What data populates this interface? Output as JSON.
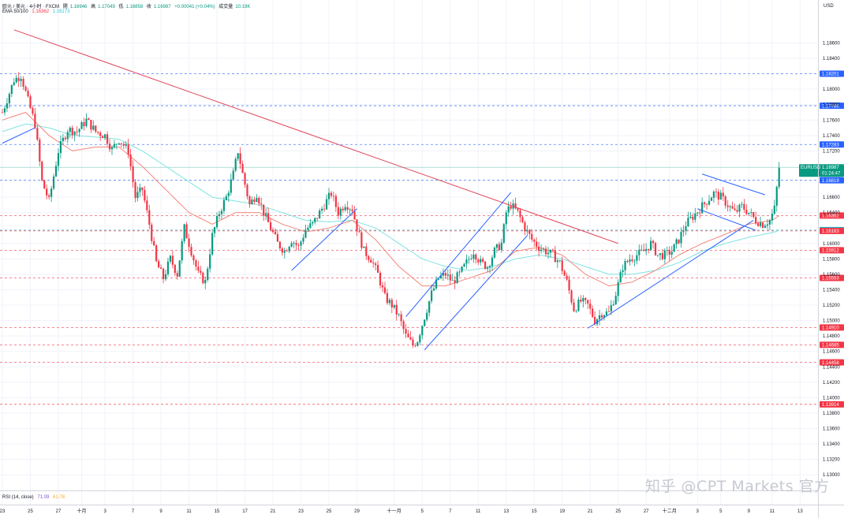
{
  "header": {
    "symbol": "欧元 / 美元 · 4小时 · FXCM",
    "open_label": "開",
    "open": "1.16946",
    "high_label": "高",
    "high": "1.17049",
    "low_label": "低",
    "low": "1.16858",
    "close_label": "收",
    "close": "1.16987",
    "change": "+0.00041 (+0.04%)",
    "volume_label": "成交量",
    "volume": "10.19K",
    "ema_label": "EMA 50/100",
    "ema50_value": "1.16362",
    "ema100_value": "1.16173",
    "currency": "USD"
  },
  "rsi": {
    "label": "RSI (14, close)",
    "value1": "71.09",
    "value2": "61.78"
  },
  "watermark": "知乎 @CPT Markets 官方",
  "colors": {
    "up": "#089981",
    "down": "#f23645",
    "ema50": "#f5867a",
    "ema100": "#7fe3e0",
    "trendline_red": "#e04558",
    "channel_blue": "#2962ff",
    "level_blue": "#2962ff",
    "level_red": "#f23645",
    "price_badge": "#089981"
  },
  "chart_data": {
    "type": "candlestick",
    "title": "",
    "symbol": "EURUSD",
    "current_price": "1.16987",
    "countdown": "01:24:47",
    "y_ticks": [
      "1.18600",
      "1.18400",
      "1.18000",
      "1.17800",
      "1.17600",
      "1.17400",
      "1.17200",
      "1.16600",
      "1.16400",
      "1.16000",
      "1.15800",
      "1.15600",
      "1.15400",
      "1.15200",
      "1.15000",
      "1.14800",
      "1.14600",
      "1.14400",
      "1.14200",
      "1.14000",
      "1.13800",
      "1.13600",
      "1.13400",
      "1.13200",
      "1.13000"
    ],
    "ylim": [
      1.129,
      1.1885
    ],
    "x_ticks": [
      {
        "label": "23",
        "i": 0
      },
      {
        "label": "25",
        "i": 12
      },
      {
        "label": "27",
        "i": 24
      },
      {
        "label": "十月",
        "i": 34
      },
      {
        "label": "3",
        "i": 44
      },
      {
        "label": "7",
        "i": 56
      },
      {
        "label": "9",
        "i": 68
      },
      {
        "label": "11",
        "i": 80
      },
      {
        "label": "15",
        "i": 92
      },
      {
        "label": "17",
        "i": 104
      },
      {
        "label": "21",
        "i": 116
      },
      {
        "label": "23",
        "i": 128
      },
      {
        "label": "25",
        "i": 140
      },
      {
        "label": "29",
        "i": 152
      },
      {
        "label": "十一月",
        "i": 168
      },
      {
        "label": "5",
        "i": 180
      },
      {
        "label": "7",
        "i": 192
      },
      {
        "label": "11",
        "i": 204
      },
      {
        "label": "13",
        "i": 216
      },
      {
        "label": "15",
        "i": 228
      },
      {
        "label": "19",
        "i": 240
      },
      {
        "label": "21",
        "i": 252
      },
      {
        "label": "25",
        "i": 264
      },
      {
        "label": "27",
        "i": 276
      },
      {
        "label": "十二月",
        "i": 286
      },
      {
        "label": "3",
        "i": 298
      },
      {
        "label": "5",
        "i": 308
      },
      {
        "label": "9",
        "i": 320
      },
      {
        "label": "11",
        "i": 330
      },
      {
        "label": "13",
        "i": 342
      }
    ],
    "levels": [
      {
        "price": 1.18201,
        "label": "1.18201",
        "color": "blue"
      },
      {
        "price": 1.17786,
        "label": "1.17786",
        "color": "blue"
      },
      {
        "price": 1.17283,
        "label": "1.17283",
        "color": "blue"
      },
      {
        "price": 1.16819,
        "label": "1.16819",
        "color": "blue"
      },
      {
        "price": 1.16362,
        "label": "1.16362",
        "color": "red"
      },
      {
        "price": 1.16173,
        "label": "1.16173",
        "color": "cyan"
      },
      {
        "price": 1.16163,
        "label": "1.16163",
        "color": "red"
      },
      {
        "price": 1.15912,
        "label": "1.15912",
        "color": "red"
      },
      {
        "price": 1.15553,
        "label": "1.15553",
        "color": "red"
      },
      {
        "price": 1.1491,
        "label": "1.14910",
        "color": "red"
      },
      {
        "price": 1.14685,
        "label": "1.14685",
        "color": "red"
      },
      {
        "price": 1.14458,
        "label": "1.14458",
        "color": "red"
      },
      {
        "price": 1.13914,
        "label": "1.13914",
        "color": "red"
      }
    ],
    "anchors": [
      [
        0,
        1.177
      ],
      [
        3,
        1.1795
      ],
      [
        5,
        1.1812
      ],
      [
        8,
        1.1818
      ],
      [
        11,
        1.1785
      ],
      [
        14,
        1.1755
      ],
      [
        17,
        1.168
      ],
      [
        20,
        1.1655
      ],
      [
        24,
        1.172
      ],
      [
        28,
        1.1748
      ],
      [
        32,
        1.1745
      ],
      [
        36,
        1.176
      ],
      [
        40,
        1.1745
      ],
      [
        44,
        1.174
      ],
      [
        47,
        1.1722
      ],
      [
        50,
        1.1735
      ],
      [
        54,
        1.172
      ],
      [
        57,
        1.166
      ],
      [
        60,
        1.167
      ],
      [
        63,
        1.1625
      ],
      [
        66,
        1.1575
      ],
      [
        69,
        1.1555
      ],
      [
        72,
        1.158
      ],
      [
        75,
        1.156
      ],
      [
        78,
        1.162
      ],
      [
        81,
        1.159
      ],
      [
        84,
        1.156
      ],
      [
        87,
        1.155
      ],
      [
        90,
        1.161
      ],
      [
        93,
        1.164
      ],
      [
        96,
        1.166
      ],
      [
        99,
        1.169
      ],
      [
        101,
        1.172
      ],
      [
        103,
        1.169
      ],
      [
        106,
        1.165
      ],
      [
        109,
        1.1665
      ],
      [
        112,
        1.164
      ],
      [
        115,
        1.162
      ],
      [
        118,
        1.16
      ],
      [
        121,
        1.159
      ],
      [
        124,
        1.1605
      ],
      [
        127,
        1.1595
      ],
      [
        130,
        1.1618
      ],
      [
        133,
        1.1625
      ],
      [
        136,
        1.164
      ],
      [
        139,
        1.1655
      ],
      [
        141,
        1.1665
      ],
      [
        144,
        1.164
      ],
      [
        147,
        1.1652
      ],
      [
        150,
        1.1645
      ],
      [
        152,
        1.162
      ],
      [
        155,
        1.159
      ],
      [
        158,
        1.158
      ],
      [
        161,
        1.156
      ],
      [
        164,
        1.153
      ],
      [
        167,
        1.152
      ],
      [
        170,
        1.1505
      ],
      [
        173,
        1.148
      ],
      [
        176,
        1.1468
      ],
      [
        178,
        1.1475
      ],
      [
        181,
        1.1505
      ],
      [
        184,
        1.1535
      ],
      [
        187,
        1.1555
      ],
      [
        190,
        1.156
      ],
      [
        193,
        1.155
      ],
      [
        196,
        1.156
      ],
      [
        199,
        1.1575
      ],
      [
        202,
        1.159
      ],
      [
        205,
        1.1575
      ],
      [
        208,
        1.157
      ],
      [
        211,
        1.159
      ],
      [
        214,
        1.16
      ],
      [
        216,
        1.164
      ],
      [
        218,
        1.165
      ],
      [
        221,
        1.164
      ],
      [
        224,
        1.162
      ],
      [
        227,
        1.1605
      ],
      [
        230,
        1.1595
      ],
      [
        233,
        1.159
      ],
      [
        236,
        1.1585
      ],
      [
        239,
        1.1575
      ],
      [
        242,
        1.155
      ],
      [
        245,
        1.1515
      ],
      [
        248,
        1.1525
      ],
      [
        251,
        1.152
      ],
      [
        254,
        1.15
      ],
      [
        257,
        1.151
      ],
      [
        260,
        1.151
      ],
      [
        263,
        1.1535
      ],
      [
        266,
        1.157
      ],
      [
        269,
        1.158
      ],
      [
        272,
        1.1585
      ],
      [
        275,
        1.159
      ],
      [
        278,
        1.16
      ],
      [
        281,
        1.1585
      ],
      [
        284,
        1.1585
      ],
      [
        287,
        1.159
      ],
      [
        290,
        1.1605
      ],
      [
        293,
        1.1625
      ],
      [
        296,
        1.1635
      ],
      [
        299,
        1.1645
      ],
      [
        302,
        1.1655
      ],
      [
        305,
        1.1665
      ],
      [
        308,
        1.166
      ],
      [
        311,
        1.165
      ],
      [
        314,
        1.164
      ],
      [
        317,
        1.1648
      ],
      [
        320,
        1.164
      ],
      [
        323,
        1.163
      ],
      [
        326,
        1.1625
      ],
      [
        329,
        1.163
      ],
      [
        331,
        1.1645
      ],
      [
        333,
        1.1698
      ]
    ],
    "ema50_anchors": [
      [
        0,
        1.176
      ],
      [
        10,
        1.177
      ],
      [
        20,
        1.174
      ],
      [
        30,
        1.172
      ],
      [
        40,
        1.1725
      ],
      [
        50,
        1.1725
      ],
      [
        60,
        1.17
      ],
      [
        70,
        1.167
      ],
      [
        80,
        1.164
      ],
      [
        90,
        1.1625
      ],
      [
        100,
        1.164
      ],
      [
        110,
        1.164
      ],
      [
        120,
        1.1625
      ],
      [
        130,
        1.1615
      ],
      [
        140,
        1.162
      ],
      [
        150,
        1.163
      ],
      [
        160,
        1.1605
      ],
      [
        170,
        1.157
      ],
      [
        180,
        1.1545
      ],
      [
        190,
        1.1545
      ],
      [
        200,
        1.1555
      ],
      [
        210,
        1.1565
      ],
      [
        220,
        1.159
      ],
      [
        230,
        1.1595
      ],
      [
        240,
        1.1585
      ],
      [
        250,
        1.156
      ],
      [
        260,
        1.1545
      ],
      [
        270,
        1.155
      ],
      [
        280,
        1.1565
      ],
      [
        290,
        1.1585
      ],
      [
        300,
        1.16
      ],
      [
        310,
        1.1612
      ],
      [
        320,
        1.1625
      ],
      [
        330,
        1.163
      ],
      [
        333,
        1.1636
      ]
    ],
    "ema100_anchors": [
      [
        0,
        1.1745
      ],
      [
        10,
        1.1755
      ],
      [
        20,
        1.175
      ],
      [
        30,
        1.174
      ],
      [
        40,
        1.1738
      ],
      [
        50,
        1.1735
      ],
      [
        60,
        1.172
      ],
      [
        70,
        1.17
      ],
      [
        80,
        1.168
      ],
      [
        90,
        1.166
      ],
      [
        100,
        1.1655
      ],
      [
        110,
        1.165
      ],
      [
        120,
        1.164
      ],
      [
        130,
        1.163
      ],
      [
        140,
        1.1628
      ],
      [
        150,
        1.163
      ],
      [
        160,
        1.162
      ],
      [
        170,
        1.16
      ],
      [
        180,
        1.158
      ],
      [
        190,
        1.157
      ],
      [
        200,
        1.1565
      ],
      [
        210,
        1.157
      ],
      [
        220,
        1.158
      ],
      [
        230,
        1.1585
      ],
      [
        240,
        1.158
      ],
      [
        250,
        1.157
      ],
      [
        260,
        1.156
      ],
      [
        270,
        1.156
      ],
      [
        280,
        1.1565
      ],
      [
        290,
        1.1575
      ],
      [
        300,
        1.159
      ],
      [
        310,
        1.16
      ],
      [
        320,
        1.1608
      ],
      [
        330,
        1.1614
      ],
      [
        333,
        1.1617
      ]
    ],
    "trendlines": [
      {
        "color": "red",
        "from": [
          5,
          1.1877
        ],
        "to": [
          264,
          1.16
        ]
      },
      {
        "color": "blue",
        "from": [
          0,
          1.173
        ],
        "to": [
          14,
          1.175
        ]
      },
      {
        "color": "blue",
        "from": [
          124,
          1.1565
        ],
        "to": [
          152,
          1.1645
        ]
      },
      {
        "color": "blue",
        "from": [
          173,
          1.1505
        ],
        "to": [
          218,
          1.1666
        ]
      },
      {
        "color": "blue",
        "from": [
          181,
          1.1462
        ],
        "to": [
          225,
          1.161
        ]
      },
      {
        "color": "blue",
        "from": [
          251,
          1.149
        ],
        "to": [
          322,
          1.163
        ]
      },
      {
        "color": "blue",
        "from": [
          300,
          1.169
        ],
        "to": [
          327,
          1.1663
        ]
      },
      {
        "color": "blue",
        "from": [
          298,
          1.1645
        ],
        "to": [
          323,
          1.1617
        ]
      }
    ]
  }
}
